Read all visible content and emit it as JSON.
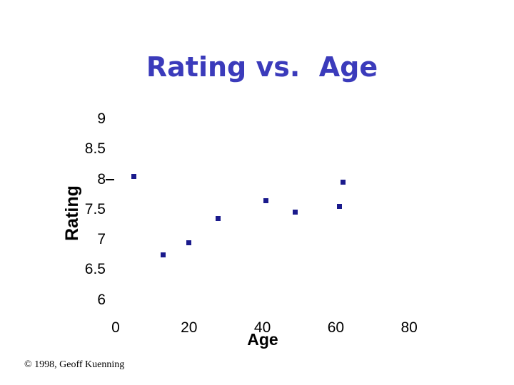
{
  "slide": {
    "title": "Rating vs.  Age",
    "copyright": "© 1998, Geoff Kuenning"
  },
  "colors": {
    "title_text": "#3b3bbb",
    "axis_text": "#000000",
    "point_fill": "#1a1a8c",
    "background": "#ffffff"
  },
  "chart_data": {
    "type": "scatter",
    "title": "Rating vs. Age",
    "xlabel": "Age",
    "ylabel": "Rating",
    "x_ticks": [
      0,
      20,
      40,
      60,
      80
    ],
    "y_ticks": [
      9,
      8.5,
      8,
      7.5,
      7,
      6.5,
      6
    ],
    "xlim": [
      0,
      80
    ],
    "ylim": [
      6,
      9
    ],
    "grid": false,
    "legend": "none",
    "marker": "square",
    "points": [
      {
        "age": 5,
        "rating": 8.05
      },
      {
        "age": 13,
        "rating": 6.75
      },
      {
        "age": 20,
        "rating": 6.95
      },
      {
        "age": 28,
        "rating": 7.35
      },
      {
        "age": 41,
        "rating": 7.65
      },
      {
        "age": 49,
        "rating": 7.45
      },
      {
        "age": 61,
        "rating": 7.55
      },
      {
        "age": 62,
        "rating": 7.95
      }
    ]
  }
}
